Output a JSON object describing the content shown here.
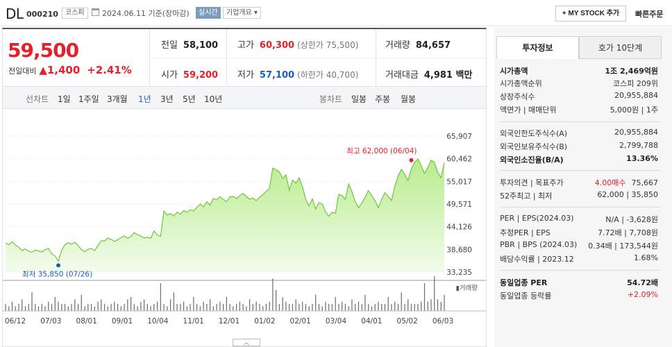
{
  "header": {
    "stock_name": "DL",
    "stock_code": "000210",
    "market": "코스피",
    "date_text": "2024.06.11  기준(장마감)",
    "live_label": "실시간",
    "overview_label": "기업개요 ▾",
    "mystock_label": "+ MY STOCK 추가",
    "quick_order_label": "빠른주문"
  },
  "price": {
    "current": "59,500",
    "change_label": "전일대비",
    "change_value": "▲1,400",
    "change_pct": "+2.41%"
  },
  "stats": {
    "prev_close_label": "전일",
    "prev_close": "58,100",
    "high_label": "고가",
    "high": "60,300",
    "upper_limit": "(상한가 75,500)",
    "volume_label": "거래량",
    "volume": "84,657",
    "open_label": "시가",
    "open": "59,200",
    "low_label": "저가",
    "low": "57,100",
    "lower_limit": "(하한가 40,700)",
    "amount_label": "거래대금",
    "amount": "4,981 백만"
  },
  "period_bar": {
    "line_label": "선차트",
    "line_periods": [
      "1일",
      "1주일",
      "3개월",
      "1년",
      "3년",
      "5년",
      "10년"
    ],
    "active_period": "1년",
    "candle_label": "봉차트",
    "candle_periods": [
      "일봉",
      "주봉",
      "월봉"
    ]
  },
  "right_panel": {
    "tab_active": "투자정보",
    "tab_other": "호가 10단계",
    "rows": [
      {
        "k": "시가총액",
        "v": "1조 2,469억원",
        "bold": true
      },
      {
        "k": "시가총액순위",
        "v": "코스피 209위"
      },
      {
        "k": "상장주식수",
        "v": "20,955,884"
      },
      {
        "k": "액면가 | 매매단위",
        "v": "5,000원 | 1주"
      },
      {
        "k": "외국인한도주식수(A)",
        "v": "20,955,884"
      },
      {
        "k": "외국인보유주식수(B)",
        "v": "2,799,788"
      },
      {
        "k": "외국인소진율(B/A)",
        "v": "13.36%",
        "bold": true
      },
      {
        "k": "투자의견 | 목표주가",
        "v1": "4.00매수",
        "v": "75,667"
      },
      {
        "k": "52주최고 | 최저",
        "v": "62,000 | 35,850"
      },
      {
        "k": "PER | EPS(2024.03)",
        "v": "N/A | -3,628원"
      },
      {
        "k": "추정PER | EPS",
        "v": "7.72배 | 7,708원"
      },
      {
        "k": "PBR | BPS (2024.03)",
        "v": "0.34배 | 173,544원"
      },
      {
        "k": "배당수익률 | 2023.12",
        "v": "1.68%"
      },
      {
        "k": "동일업종 PER",
        "v": "54.72배",
        "bold": true
      },
      {
        "k": "동일업종 등락률",
        "v": "+2.09%",
        "red": true
      }
    ]
  },
  "chart_data": {
    "type": "area",
    "ylim": [
      33235,
      65907
    ],
    "y_ticks": [
      "65,907",
      "60,462",
      "55,017",
      "49,571",
      "44,126",
      "38,680",
      "33,235"
    ],
    "x_ticks": [
      "06/12",
      "07/03",
      "08/01",
      "09/01",
      "10/04",
      "11/01",
      "12/01",
      "01/02",
      "02/01",
      "03/04",
      "04/01",
      "05/02",
      "06/03"
    ],
    "high_label": "최고 62,000 (06/04)",
    "low_label": "최저 35,850 (07/26)",
    "volume_label": "거래량",
    "values": [
      40200,
      39800,
      40500,
      39700,
      39200,
      38400,
      38800,
      38200,
      38000,
      38500,
      38300,
      38100,
      38600,
      38900,
      37600,
      37100,
      35850,
      38400,
      39800,
      40300,
      39900,
      40400,
      39600,
      38600,
      38100,
      38700,
      38900,
      38400,
      39600,
      40800,
      40700,
      41400,
      41100,
      40600,
      41000,
      41500,
      41900,
      41300,
      41800,
      42700,
      42200,
      41900,
      41400,
      41600,
      41300,
      43100,
      42100,
      41800,
      47900,
      46900,
      47300,
      46700,
      47600,
      47100,
      48000,
      47600,
      48200,
      47900,
      48800,
      49600,
      48900,
      50100,
      49300,
      50900,
      50600,
      51300,
      50700,
      50100,
      51300,
      51400,
      50900,
      51600,
      52100,
      51400,
      50700,
      51000,
      50400,
      51200,
      51800,
      52600,
      53400,
      58200,
      57800,
      57300,
      55700,
      56600,
      52900,
      55300,
      54600,
      55900,
      53700,
      50700,
      49100,
      50800,
      48400,
      49900,
      49600,
      47700,
      46600,
      47600,
      47300,
      51900,
      51600,
      50700,
      54400,
      52600,
      50100,
      48700,
      49800,
      51200,
      52800,
      51600,
      50400,
      48700,
      50700,
      52300,
      51400,
      50400,
      53800,
      56300,
      57900,
      56700,
      55200,
      58100,
      59600,
      60400,
      58800,
      56900,
      58300,
      60100,
      59600,
      57200,
      55900,
      59500
    ],
    "high_index": 123,
    "low_index": 16,
    "volumes": [
      3,
      2,
      4,
      2,
      3,
      5,
      2,
      3,
      8,
      3,
      2,
      3,
      2,
      4,
      3,
      6,
      4,
      3,
      3,
      2,
      3,
      5,
      3,
      7,
      2,
      3,
      3,
      2,
      4,
      5,
      3,
      2,
      3,
      4,
      3,
      2,
      3,
      5,
      6,
      3,
      2,
      4,
      5,
      3,
      2,
      3,
      4,
      12,
      3,
      2,
      5,
      8,
      3,
      3,
      4,
      2,
      3,
      6,
      3,
      2,
      4,
      3,
      5,
      2,
      3,
      4,
      3,
      6,
      3,
      2,
      3,
      4,
      3,
      2,
      5,
      3,
      4,
      3,
      2,
      3,
      4,
      14,
      9,
      3,
      6,
      4,
      3,
      3,
      5,
      3,
      4,
      3,
      2,
      3,
      7,
      3,
      2,
      4,
      3,
      3,
      6,
      3,
      4,
      3,
      2,
      5,
      3,
      4,
      3,
      7,
      3,
      2,
      3,
      4,
      3,
      3,
      6,
      3,
      4,
      3,
      8,
      3,
      5,
      3,
      3,
      3,
      4,
      12,
      4,
      5,
      15,
      5,
      4,
      7
    ]
  }
}
